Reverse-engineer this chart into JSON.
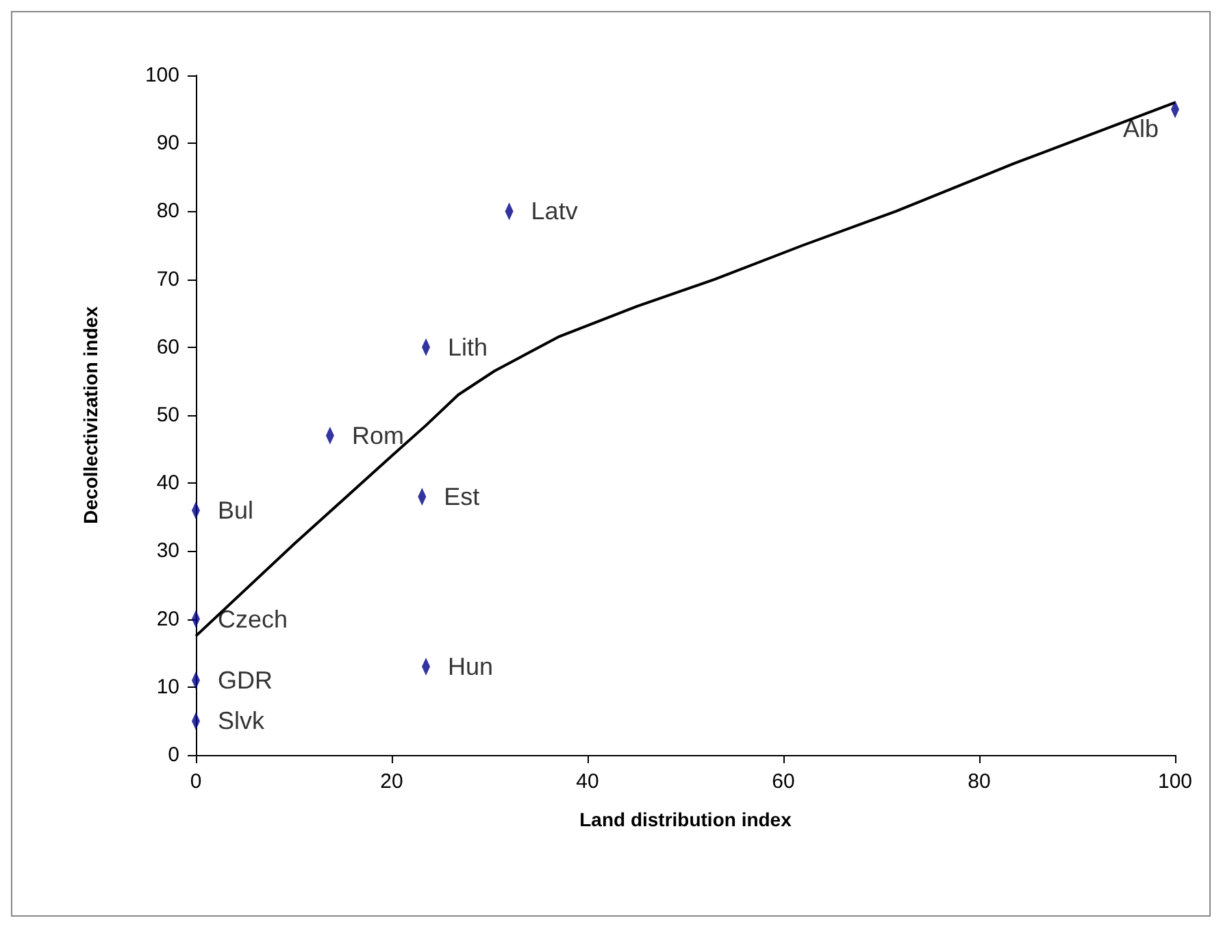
{
  "chart_data": {
    "type": "scatter",
    "xlabel": "Land distribution index",
    "ylabel": "Decollectivization index",
    "xlim": [
      0,
      100
    ],
    "xticks": [
      0,
      20,
      40,
      60,
      80,
      100
    ],
    "ylim": [
      0,
      100
    ],
    "yticks": [
      0,
      10,
      20,
      30,
      40,
      50,
      60,
      70,
      80,
      90,
      100
    ],
    "grid": false,
    "series": [
      {
        "color": "#00008b",
        "marker": "diamond",
        "x": [
          100,
          32,
          23.5,
          13.7,
          23.1,
          0,
          0,
          0,
          0,
          23.5
        ],
        "values": [
          95,
          80,
          60,
          47,
          38,
          36,
          20,
          11,
          5,
          13
        ]
      },
      {
        "type": "line",
        "color": "#000000",
        "x": [
          0,
          10,
          20,
          23.5,
          26.8,
          30.5,
          37,
          45,
          53,
          62,
          71.5,
          83.5,
          100
        ],
        "values": [
          17.5,
          31,
          44,
          48.5,
          53,
          56.5,
          61.5,
          66,
          70,
          75,
          80,
          87,
          96
        ]
      }
    ],
    "annotations": [
      {
        "text": "Alb",
        "x": 100,
        "y": 95
      },
      {
        "text": "Latv",
        "x": 32,
        "y": 80
      },
      {
        "text": "Lith",
        "x": 23.5,
        "y": 60
      },
      {
        "text": "Rom",
        "x": 13.7,
        "y": 47
      },
      {
        "text": "Est",
        "x": 23.1,
        "y": 38
      },
      {
        "text": "Bul",
        "x": 0,
        "y": 36
      },
      {
        "text": "Czech",
        "x": 0,
        "y": 20
      },
      {
        "text": "GDR",
        "x": 0,
        "y": 11
      },
      {
        "text": "Slvk",
        "x": 0,
        "y": 5
      },
      {
        "text": "Hun",
        "x": 23.5,
        "y": 13
      }
    ]
  }
}
